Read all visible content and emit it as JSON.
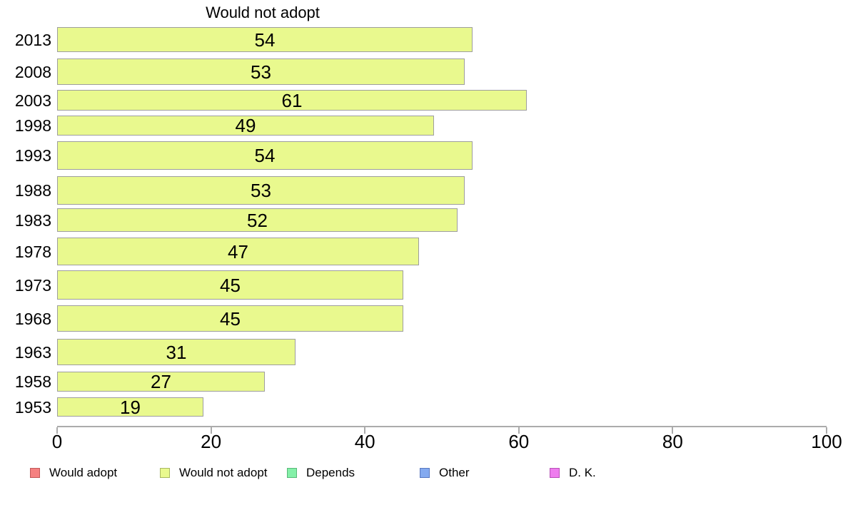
{
  "chart_data": {
    "type": "bar",
    "orientation": "horizontal",
    "title": "Would not adopt",
    "categories": [
      "2013",
      "2008",
      "2003",
      "1998",
      "1993",
      "1988",
      "1983",
      "1978",
      "1973",
      "1968",
      "1963",
      "1958",
      "1953"
    ],
    "values": [
      54,
      53,
      61,
      49,
      54,
      53,
      52,
      47,
      45,
      45,
      31,
      27,
      19
    ],
    "value_labels_shown": true,
    "xlabel": "",
    "ylabel": "",
    "xlim": [
      0,
      100
    ],
    "xticks": [
      0,
      20,
      40,
      60,
      80,
      100
    ],
    "grid": false,
    "legend_position": "bottom",
    "bar_fill": "#E9F98E",
    "bar_border": "#9E9E9E",
    "legend": [
      {
        "label": "Would adopt",
        "fill": "#F58080",
        "border": "#C05858"
      },
      {
        "label": "Would not adopt",
        "fill": "#E9F98E",
        "border": "#A8B860"
      },
      {
        "label": "Depends",
        "fill": "#84F0A8",
        "border": "#58B878"
      },
      {
        "label": "Other",
        "fill": "#84AAF0",
        "border": "#5878C0"
      },
      {
        "label": "D. K.",
        "fill": "#EE7CEE",
        "border": "#B850B8"
      }
    ]
  }
}
